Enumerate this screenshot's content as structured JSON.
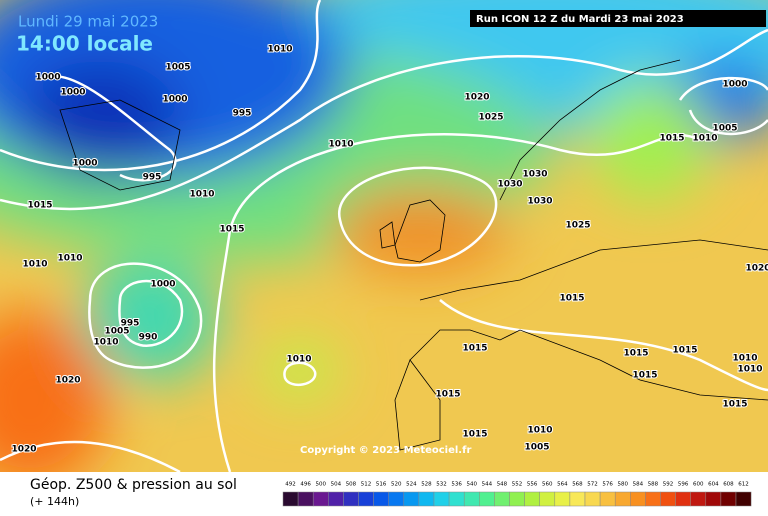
{
  "header": {
    "date": "Lundi 29 mai 2023",
    "time": "14:00 locale",
    "run": "Run ICON 12 Z du Mardi 23 mai 2023"
  },
  "footer": {
    "title": "Géop. Z500 & pression au sol",
    "lead": "(+ 144h)",
    "copyright": "Copyright © 2023 Meteociel.fr"
  },
  "isobar_labels": [
    "1005",
    "1010",
    "1000",
    "1000",
    "1000",
    "995",
    "1000",
    "995",
    "1010",
    "1010",
    "1015",
    "1015",
    "1010",
    "1010",
    "1000",
    "995",
    "990",
    "1005",
    "1010",
    "1020",
    "1020",
    "1010",
    "1020",
    "1025",
    "1030",
    "1030",
    "1030",
    "1025",
    "1015",
    "1015",
    "1015",
    "1015",
    "1010",
    "1005",
    "1015",
    "1015",
    "1015",
    "1010",
    "1000",
    "1005",
    "1010",
    "1015",
    "1020",
    "1010",
    "1015"
  ],
  "scale": {
    "values": [
      492,
      496,
      500,
      504,
      508,
      512,
      516,
      520,
      524,
      528,
      532,
      536,
      540,
      544,
      548,
      552,
      556,
      560,
      564,
      568,
      572,
      576,
      580,
      584,
      588,
      592,
      596,
      600,
      604,
      608,
      612
    ],
    "colors": [
      "#2a0a30",
      "#4a1060",
      "#6a1890",
      "#5020a8",
      "#3030c0",
      "#1840d8",
      "#0858e8",
      "#0878f0",
      "#0898f0",
      "#10b8f0",
      "#20d0e8",
      "#30e0d0",
      "#40e8b0",
      "#50f090",
      "#70f070",
      "#90f050",
      "#b0f040",
      "#d0f040",
      "#e8f048",
      "#f8e858",
      "#f8d850",
      "#f8c040",
      "#f8a830",
      "#f89020",
      "#f87018",
      "#f05010",
      "#e03010",
      "#c01810",
      "#a00808",
      "#700000",
      "#400000"
    ]
  }
}
